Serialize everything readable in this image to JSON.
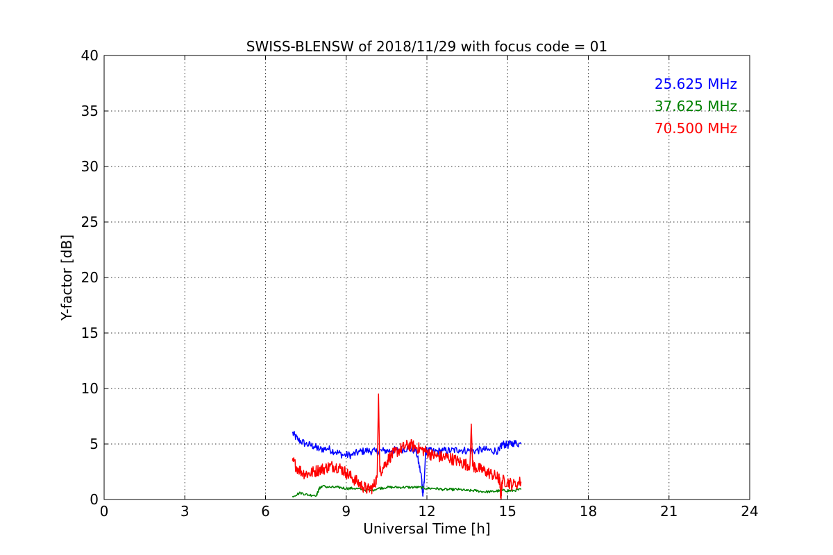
{
  "chart_data": {
    "type": "line",
    "title": "SWISS-BLENSW of 2018/11/29 with focus code = 01",
    "xlabel": "Universal Time [h]",
    "ylabel": "Y-factor [dB]",
    "xlim": [
      0,
      24
    ],
    "ylim": [
      0,
      40
    ],
    "xticks": [
      0,
      3,
      6,
      9,
      12,
      15,
      18,
      21,
      24
    ],
    "yticks": [
      0,
      5,
      10,
      15,
      20,
      25,
      30,
      35,
      40
    ],
    "grid": true,
    "legend_placement": "top-right",
    "series": [
      {
        "name": "25.625 MHz",
        "color": "#0000ff",
        "x": [
          7.0,
          7.2,
          7.5,
          7.8,
          8.0,
          8.3,
          8.6,
          8.9,
          9.2,
          9.5,
          9.8,
          10.1,
          10.4,
          10.7,
          11.0,
          11.3,
          11.6,
          11.8,
          11.85,
          11.9,
          11.95,
          12.0,
          12.3,
          12.6,
          12.9,
          13.2,
          13.5,
          13.8,
          14.1,
          14.4,
          14.7,
          14.8,
          15.0,
          15.2,
          15.5
        ],
        "y": [
          6.0,
          5.4,
          5.0,
          4.8,
          4.5,
          4.6,
          4.3,
          4.0,
          4.0,
          4.3,
          4.4,
          4.3,
          4.4,
          4.4,
          4.5,
          4.6,
          4.4,
          2.0,
          0.3,
          1.5,
          4.3,
          4.4,
          4.3,
          4.4,
          4.4,
          4.5,
          4.4,
          4.4,
          4.5,
          4.4,
          4.4,
          5.0,
          4.9,
          5.1,
          5.0
        ]
      },
      {
        "name": "37.625 MHz",
        "color": "#008000",
        "x": [
          7.0,
          7.3,
          7.6,
          7.9,
          8.0,
          8.1,
          8.4,
          8.7,
          9.0,
          9.3,
          9.6,
          9.9,
          10.2,
          10.5,
          10.8,
          11.1,
          11.4,
          11.7,
          12.0,
          12.3,
          12.6,
          12.9,
          13.2,
          13.5,
          13.8,
          14.1,
          14.4,
          14.7,
          15.0,
          15.2,
          15.5
        ],
        "y": [
          0.3,
          0.6,
          0.4,
          0.4,
          1.0,
          1.2,
          1.1,
          1.1,
          1.0,
          1.0,
          0.9,
          0.8,
          1.0,
          1.1,
          1.1,
          1.1,
          1.1,
          1.1,
          1.0,
          1.0,
          0.9,
          0.9,
          0.9,
          0.8,
          0.8,
          0.7,
          0.7,
          0.8,
          0.8,
          0.8,
          0.9
        ]
      },
      {
        "name": "70.500 MHz",
        "color": "#ff0000",
        "x": [
          7.0,
          7.2,
          7.4,
          7.6,
          7.8,
          8.0,
          8.2,
          8.4,
          8.6,
          8.8,
          9.0,
          9.2,
          9.4,
          9.6,
          9.8,
          10.0,
          10.15,
          10.2,
          10.25,
          10.4,
          10.6,
          10.8,
          11.0,
          11.2,
          11.4,
          11.6,
          11.8,
          12.0,
          12.2,
          12.4,
          12.6,
          12.8,
          13.0,
          13.2,
          13.4,
          13.6,
          13.65,
          13.7,
          13.8,
          14.0,
          14.2,
          14.4,
          14.6,
          14.7,
          14.75,
          14.8,
          15.0,
          15.2,
          15.5
        ],
        "y": [
          3.5,
          2.8,
          2.4,
          2.3,
          2.5,
          2.7,
          2.8,
          3.0,
          3.0,
          2.8,
          2.4,
          2.0,
          1.6,
          1.2,
          0.9,
          1.1,
          2.0,
          9.5,
          2.5,
          3.0,
          3.8,
          4.2,
          4.5,
          4.8,
          4.9,
          4.7,
          4.5,
          4.3,
          4.0,
          3.9,
          3.8,
          3.8,
          3.6,
          3.4,
          3.2,
          3.1,
          6.8,
          3.0,
          2.9,
          2.7,
          2.5,
          2.3,
          2.0,
          1.8,
          0.2,
          1.7,
          1.6,
          1.3,
          1.6
        ]
      }
    ]
  }
}
